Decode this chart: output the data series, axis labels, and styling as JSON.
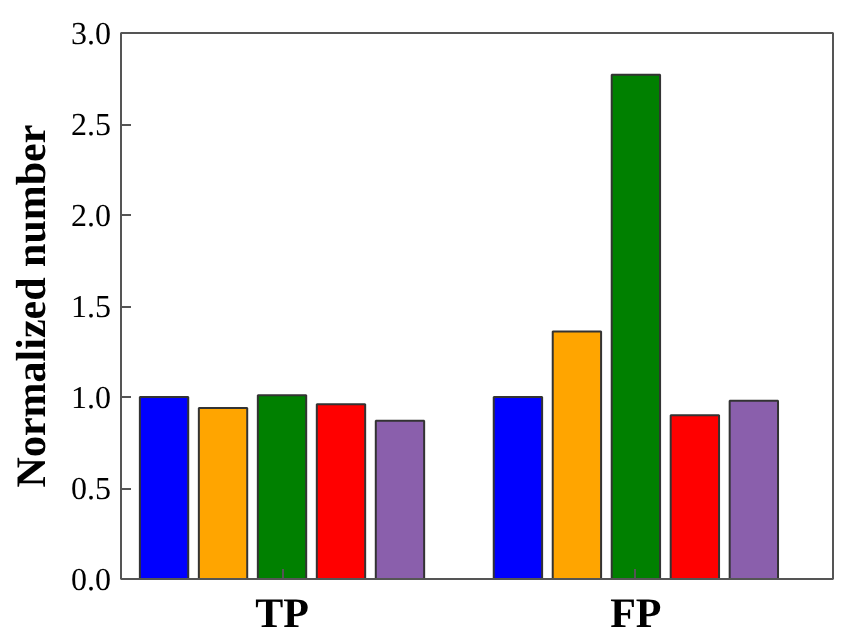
{
  "chart_data": {
    "type": "bar",
    "ylabel": "Normalized number",
    "categories": [
      "TP",
      "FP"
    ],
    "series": [
      {
        "color": "#0000ff",
        "values": [
          1.0,
          1.0
        ]
      },
      {
        "color": "#ffa500",
        "values": [
          0.94,
          1.36
        ]
      },
      {
        "color": "#008000",
        "values": [
          1.01,
          2.77
        ]
      },
      {
        "color": "#ff0000",
        "values": [
          0.96,
          0.9
        ]
      },
      {
        "color": "#8a5fac",
        "values": [
          0.87,
          0.98
        ]
      }
    ],
    "ylim": [
      0,
      3.0
    ],
    "yticks": [
      {
        "value": 0,
        "label": "0.0"
      },
      0.5,
      {
        "value": 1,
        "label": "1.0"
      },
      1.5,
      {
        "value": 2,
        "label": "2.0"
      },
      2.5,
      {
        "value": 3,
        "label": "3.0"
      }
    ],
    "grid": false
  }
}
